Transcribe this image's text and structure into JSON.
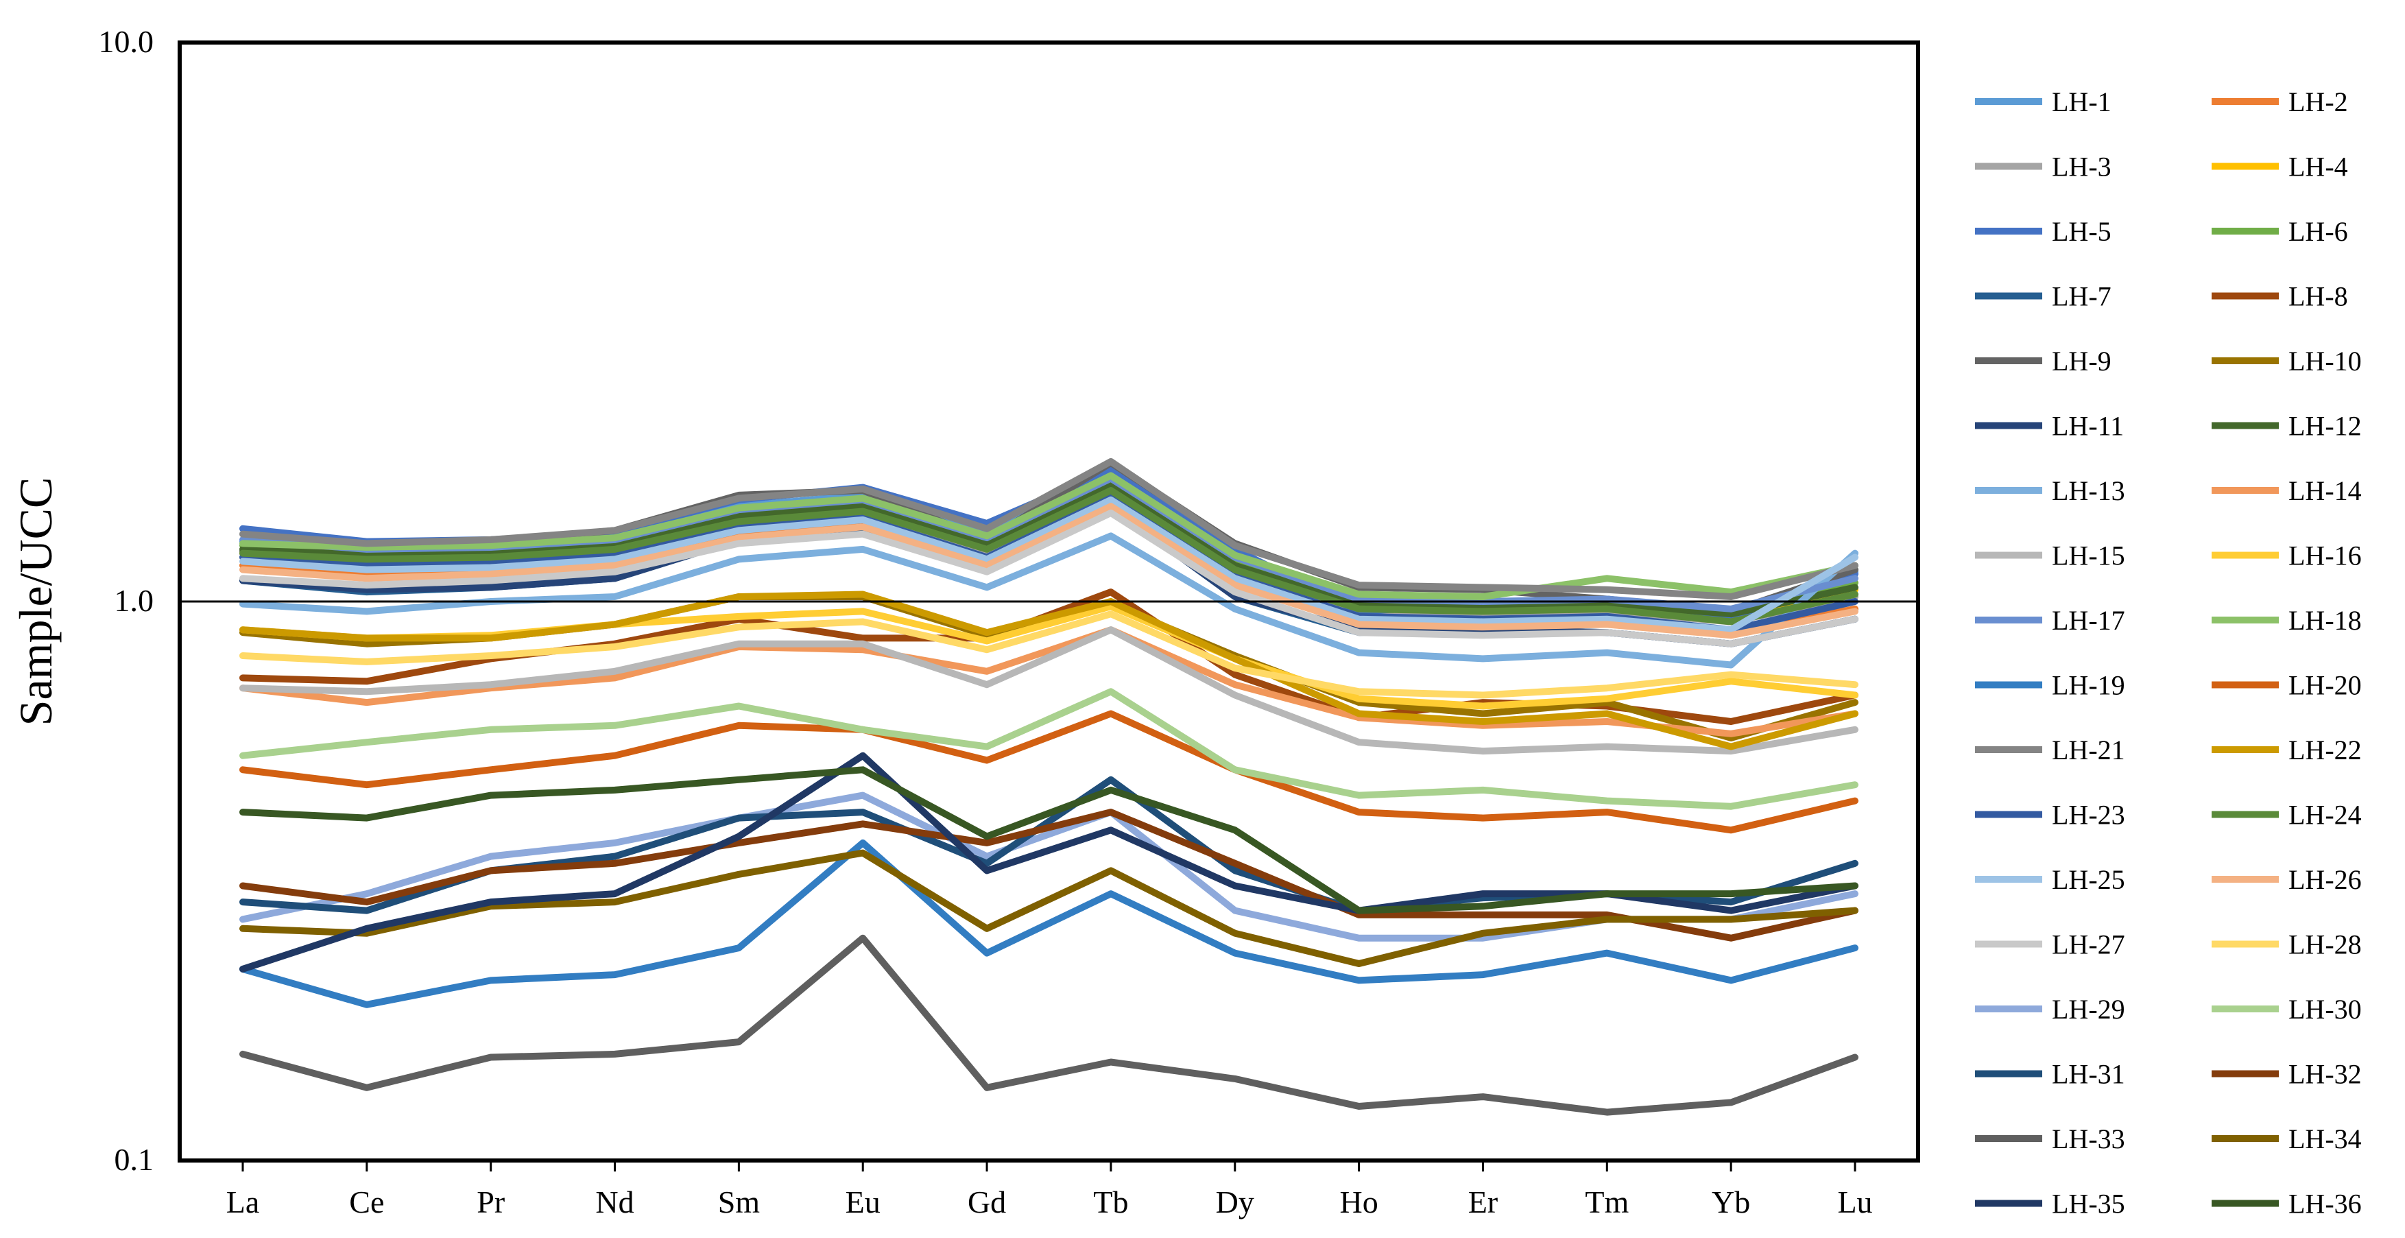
{
  "chart_data": {
    "type": "line",
    "title": "",
    "xlabel": "",
    "ylabel": "Sample/UCC",
    "yscale": "log",
    "ylim": [
      0.1,
      10.0
    ],
    "yticks": [
      "10.0",
      "1.0",
      "0.1"
    ],
    "reference_line": 1.0,
    "legend_position": "right",
    "categories": [
      "La",
      "Ce",
      "Pr",
      "Nd",
      "Sm",
      "Eu",
      "Gd",
      "Tb",
      "Dy",
      "Ho",
      "Er",
      "Tm",
      "Yb",
      "Lu"
    ],
    "series": [
      {
        "name": "LH-1",
        "color": "#5B9BD5",
        "values": [
          1.28,
          1.26,
          1.27,
          1.31,
          1.48,
          1.55,
          1.32,
          1.7,
          1.21,
          1.02,
          1.0,
          1.0,
          0.95,
          1.13
        ]
      },
      {
        "name": "LH-2",
        "color": "#ED7D31",
        "values": [
          1.16,
          1.13,
          1.15,
          1.18,
          1.32,
          1.38,
          1.18,
          1.47,
          1.08,
          0.92,
          0.91,
          0.92,
          0.88,
          0.97
        ]
      },
      {
        "name": "LH-3",
        "color": "#A5A5A5",
        "values": [
          1.2,
          1.17,
          1.19,
          1.23,
          1.38,
          1.44,
          1.23,
          1.55,
          1.13,
          0.96,
          0.95,
          0.96,
          0.92,
          1.02
        ]
      },
      {
        "name": "LH-4",
        "color": "#FFC000",
        "values": [
          1.22,
          1.2,
          1.21,
          1.25,
          1.41,
          1.47,
          1.26,
          1.59,
          1.15,
          0.98,
          0.97,
          0.98,
          0.93,
          1.05
        ]
      },
      {
        "name": "LH-5",
        "color": "#4472C4",
        "values": [
          1.35,
          1.28,
          1.29,
          1.33,
          1.52,
          1.6,
          1.38,
          1.72,
          1.24,
          0.96,
          0.99,
          1.0,
          0.93,
          1.12
        ]
      },
      {
        "name": "LH-6",
        "color": "#70AD47",
        "values": [
          1.26,
          1.23,
          1.24,
          1.28,
          1.44,
          1.5,
          1.29,
          1.63,
          1.18,
          1.0,
          0.99,
          1.01,
          0.96,
          1.08
        ]
      },
      {
        "name": "LH-7",
        "color": "#255E91",
        "values": [
          1.09,
          1.04,
          1.06,
          1.1,
          1.29,
          1.35,
          1.15,
          1.48,
          1.02,
          0.88,
          0.89,
          0.88,
          0.84,
          0.93
        ]
      },
      {
        "name": "LH-8",
        "color": "#9E480E",
        "values": [
          0.73,
          0.72,
          0.79,
          0.84,
          0.93,
          0.86,
          0.86,
          1.04,
          0.74,
          0.62,
          0.66,
          0.65,
          0.61,
          0.68
        ]
      },
      {
        "name": "LH-9",
        "color": "#636363",
        "values": [
          1.23,
          1.26,
          1.28,
          1.34,
          1.55,
          1.58,
          1.29,
          1.77,
          1.27,
          1.06,
          1.05,
          1.01,
          0.96,
          1.14
        ]
      },
      {
        "name": "LH-10",
        "color": "#997300",
        "values": [
          0.88,
          0.84,
          0.86,
          0.91,
          1.02,
          1.02,
          0.87,
          0.99,
          0.8,
          0.66,
          0.63,
          0.66,
          0.57,
          0.66
        ]
      },
      {
        "name": "LH-11",
        "color": "#264478",
        "values": [
          1.09,
          1.05,
          1.06,
          1.1,
          1.29,
          1.36,
          1.16,
          1.48,
          1.02,
          0.89,
          0.89,
          0.88,
          0.84,
          0.93
        ]
      },
      {
        "name": "LH-12",
        "color": "#43682B",
        "values": [
          1.24,
          1.21,
          1.22,
          1.26,
          1.42,
          1.48,
          1.27,
          1.61,
          1.16,
          0.99,
          0.98,
          0.99,
          0.95,
          1.06
        ]
      },
      {
        "name": "LH-13",
        "color": "#7CAFDD",
        "values": [
          0.99,
          0.96,
          1.0,
          1.02,
          1.19,
          1.24,
          1.06,
          1.31,
          0.97,
          0.81,
          0.79,
          0.81,
          0.77,
          1.22
        ]
      },
      {
        "name": "LH-14",
        "color": "#F1975A",
        "values": [
          0.7,
          0.66,
          0.7,
          0.73,
          0.83,
          0.82,
          0.75,
          0.89,
          0.71,
          0.62,
          0.6,
          0.61,
          0.58,
          0.63
        ]
      },
      {
        "name": "LH-15",
        "color": "#B7B7B7",
        "values": [
          0.7,
          0.69,
          0.71,
          0.75,
          0.84,
          0.84,
          0.71,
          0.89,
          0.68,
          0.56,
          0.54,
          0.55,
          0.54,
          0.59
        ]
      },
      {
        "name": "LH-16",
        "color": "#FFCD33",
        "values": [
          0.89,
          0.86,
          0.87,
          0.91,
          0.94,
          0.96,
          0.85,
          0.98,
          0.79,
          0.67,
          0.65,
          0.67,
          0.72,
          0.68
        ]
      },
      {
        "name": "LH-17",
        "color": "#698ED0",
        "values": [
          1.29,
          1.24,
          1.25,
          1.29,
          1.46,
          1.52,
          1.3,
          1.66,
          1.2,
          1.01,
          1.0,
          1.01,
          0.97,
          1.1
        ]
      },
      {
        "name": "LH-18",
        "color": "#8CC168",
        "values": [
          1.27,
          1.25,
          1.26,
          1.3,
          1.47,
          1.53,
          1.31,
          1.68,
          1.21,
          1.03,
          1.02,
          1.1,
          1.04,
          1.16
        ]
      },
      {
        "name": "LH-19",
        "color": "#327DC2",
        "values": [
          0.22,
          0.19,
          0.21,
          0.215,
          0.24,
          0.37,
          0.235,
          0.3,
          0.235,
          0.21,
          0.215,
          0.235,
          0.21,
          0.24
        ]
      },
      {
        "name": "LH-20",
        "color": "#D26012",
        "values": [
          0.5,
          0.47,
          0.5,
          0.53,
          0.6,
          0.59,
          0.52,
          0.63,
          0.5,
          0.42,
          0.41,
          0.42,
          0.39,
          0.44
        ]
      },
      {
        "name": "LH-21",
        "color": "#848484",
        "values": [
          1.32,
          1.27,
          1.29,
          1.34,
          1.53,
          1.59,
          1.35,
          1.78,
          1.26,
          1.07,
          1.06,
          1.05,
          1.02,
          1.16
        ]
      },
      {
        "name": "LH-22",
        "color": "#CC9A00",
        "values": [
          0.89,
          0.86,
          0.86,
          0.91,
          1.02,
          1.03,
          0.88,
          1.0,
          0.79,
          0.63,
          0.61,
          0.63,
          0.55,
          0.63
        ]
      },
      {
        "name": "LH-23",
        "color": "#335AA1",
        "values": [
          1.2,
          1.16,
          1.17,
          1.21,
          1.36,
          1.41,
          1.2,
          1.54,
          1.11,
          0.94,
          0.93,
          0.94,
          0.89,
          1.0
        ]
      },
      {
        "name": "LH-24",
        "color": "#5A8A39",
        "values": [
          1.22,
          1.19,
          1.2,
          1.24,
          1.39,
          1.45,
          1.24,
          1.58,
          1.14,
          0.97,
          0.96,
          0.97,
          0.92,
          1.03
        ]
      },
      {
        "name": "LH-25",
        "color": "#9DC3E6",
        "values": [
          1.18,
          1.14,
          1.15,
          1.19,
          1.34,
          1.4,
          1.19,
          1.52,
          1.1,
          0.93,
          0.92,
          0.93,
          0.89,
          1.2
        ]
      },
      {
        "name": "LH-26",
        "color": "#F4B183",
        "values": [
          1.14,
          1.1,
          1.12,
          1.16,
          1.3,
          1.36,
          1.16,
          1.48,
          1.07,
          0.91,
          0.9,
          0.91,
          0.87,
          0.96
        ]
      },
      {
        "name": "LH-27",
        "color": "#C9C9C9",
        "values": [
          1.1,
          1.07,
          1.09,
          1.13,
          1.27,
          1.32,
          1.13,
          1.44,
          1.04,
          0.88,
          0.87,
          0.88,
          0.84,
          0.93
        ]
      },
      {
        "name": "LH-28",
        "color": "#FFD966",
        "values": [
          0.8,
          0.78,
          0.8,
          0.83,
          0.9,
          0.92,
          0.82,
          0.95,
          0.76,
          0.69,
          0.68,
          0.7,
          0.74,
          0.71
        ]
      },
      {
        "name": "LH-29",
        "color": "#8EA9DB",
        "values": [
          0.27,
          0.3,
          0.35,
          0.37,
          0.41,
          0.45,
          0.35,
          0.42,
          0.28,
          0.25,
          0.25,
          0.27,
          0.27,
          0.3
        ]
      },
      {
        "name": "LH-30",
        "color": "#A9D18E",
        "values": [
          0.53,
          0.56,
          0.59,
          0.6,
          0.65,
          0.59,
          0.55,
          0.69,
          0.5,
          0.45,
          0.46,
          0.44,
          0.43,
          0.47
        ]
      },
      {
        "name": "LH-31",
        "color": "#1F4E79",
        "values": [
          0.29,
          0.28,
          0.33,
          0.35,
          0.41,
          0.42,
          0.34,
          0.48,
          0.33,
          0.28,
          0.295,
          0.3,
          0.29,
          0.34
        ]
      },
      {
        "name": "LH-32",
        "color": "#843C0C",
        "values": [
          0.31,
          0.29,
          0.33,
          0.34,
          0.37,
          0.4,
          0.37,
          0.42,
          0.34,
          0.275,
          0.275,
          0.275,
          0.25,
          0.28
        ]
      },
      {
        "name": "LH-33",
        "color": "#5F5F5F",
        "values": [
          0.155,
          0.135,
          0.153,
          0.155,
          0.163,
          0.25,
          0.135,
          0.15,
          0.14,
          0.125,
          0.13,
          0.122,
          0.127,
          0.153
        ]
      },
      {
        "name": "LH-34",
        "color": "#7F6000",
        "values": [
          0.26,
          0.255,
          0.285,
          0.29,
          0.325,
          0.355,
          0.26,
          0.33,
          0.255,
          0.225,
          0.255,
          0.27,
          0.27,
          0.28
        ]
      },
      {
        "name": "LH-35",
        "color": "#203864",
        "values": [
          0.22,
          0.26,
          0.29,
          0.3,
          0.38,
          0.53,
          0.33,
          0.39,
          0.31,
          0.28,
          0.3,
          0.3,
          0.28,
          0.31
        ]
      },
      {
        "name": "LH-36",
        "color": "#385723",
        "values": [
          0.42,
          0.41,
          0.45,
          0.46,
          0.48,
          0.5,
          0.38,
          0.46,
          0.39,
          0.28,
          0.285,
          0.3,
          0.3,
          0.31
        ]
      }
    ]
  }
}
